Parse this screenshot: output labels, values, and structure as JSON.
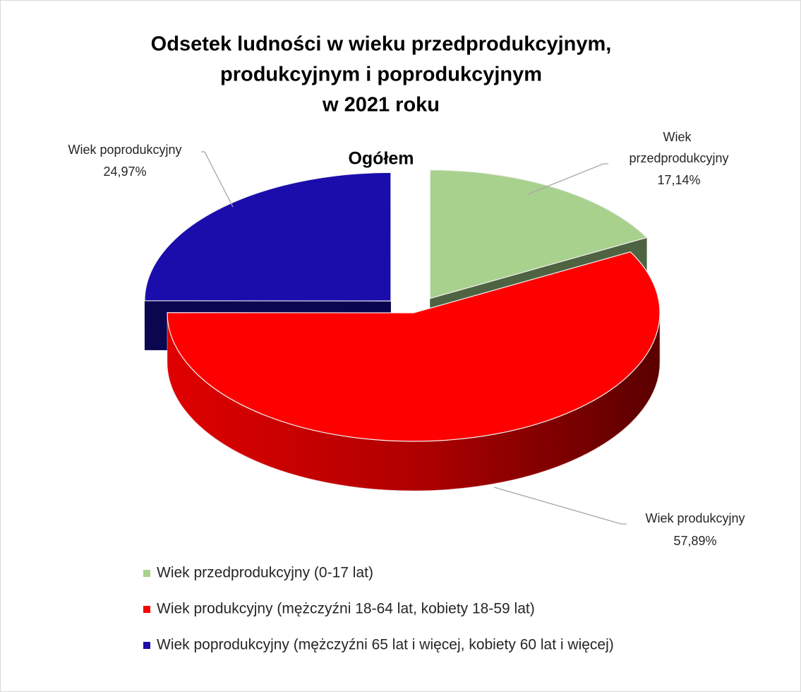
{
  "chart_data": {
    "type": "pie",
    "title": [
      "Odsetek ludności w wieku przedprodukcyjnym,",
      "produkcyjnym i poprodukcyjnym",
      "w 2021 roku"
    ],
    "subtitle": "Ogółem",
    "categories": [
      "Wiek przedprodukcyjny (0-17 lat)",
      "Wiek produkcyjny (mężczyźni 18-64 lat, kobiety 18-59 lat)",
      "Wiek poprodukcyjny (mężczyźni 65 lat i więcej, kobiety 60 lat i więcej)"
    ],
    "label_names": [
      "Wiek przedprodukcyjny",
      "Wiek produkcyjny",
      "Wiek poprodukcyjny"
    ],
    "values": [
      17.14,
      57.89,
      24.97
    ],
    "value_labels": [
      "17,14%",
      "57,89%",
      "24,97%"
    ],
    "colors": [
      "#a9d18e",
      "#ff0000",
      "#1a0dab"
    ],
    "side_colors": [
      "#4e6342",
      "#8b0000",
      "#0a0650"
    ],
    "exploded": [
      true,
      false,
      true
    ],
    "legend": "bottom"
  }
}
